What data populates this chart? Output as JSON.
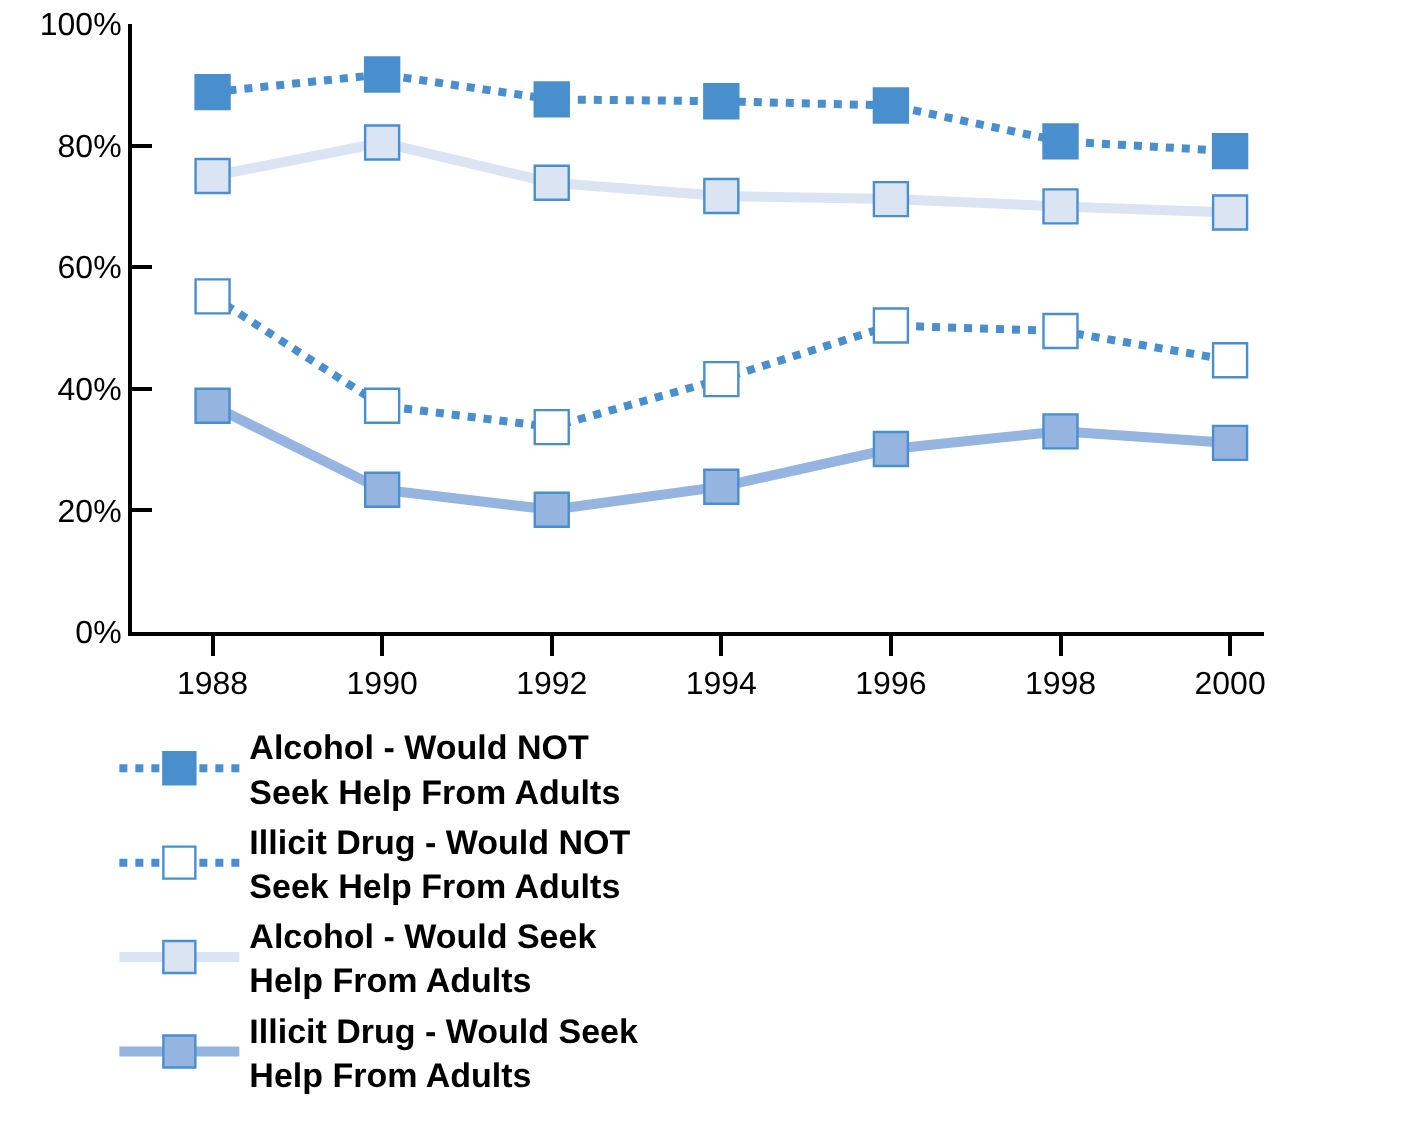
{
  "chart_data": {
    "type": "line",
    "x": [
      1988,
      1990,
      1992,
      1994,
      1996,
      1998,
      2000
    ],
    "series": [
      {
        "name": "Alcohol - Would NOT Seek Help From Adults",
        "color": "#4a8fcd",
        "line_style": "dotted",
        "values": [
          88.8,
          91.7,
          87.6,
          87.3,
          86.6,
          80.7,
          79.1
        ]
      },
      {
        "name": "Illicit Drug - Would NOT Seek Help From Adults",
        "color": "#4a8fcd",
        "line_style": "dotted",
        "values": [
          55.2,
          37.2,
          33.7,
          41.6,
          50.4,
          49.5,
          44.7
        ]
      },
      {
        "name": "Alcohol - Would Seek Help From Adults",
        "color": "#dae4f3",
        "line_style": "solid",
        "values": [
          75.0,
          80.5,
          73.9,
          71.7,
          71.2,
          70.0,
          69.0
        ]
      },
      {
        "name": "Illicit Drug - Would Seek Help From Adults",
        "color": "#95b4df",
        "line_style": "solid",
        "values": [
          37.2,
          23.4,
          20.1,
          23.9,
          30.1,
          33.0,
          31.1
        ]
      }
    ],
    "xlim": [
      1987.05,
      2000.4
    ],
    "xticks": [
      1988,
      1990,
      1992,
      1994,
      1996,
      1998,
      2000
    ],
    "ylim": [
      0,
      100
    ],
    "yticks": [
      {
        "value": 0,
        "label": "0%"
      },
      {
        "value": 20,
        "label": "20%"
      },
      {
        "value": 40,
        "label": "40%"
      },
      {
        "value": 60,
        "label": "60%"
      },
      {
        "value": 80,
        "label": "80%"
      },
      {
        "value": 100,
        "label": "100%"
      }
    ],
    "marker": "square",
    "grid": false,
    "legend": "bottom"
  }
}
